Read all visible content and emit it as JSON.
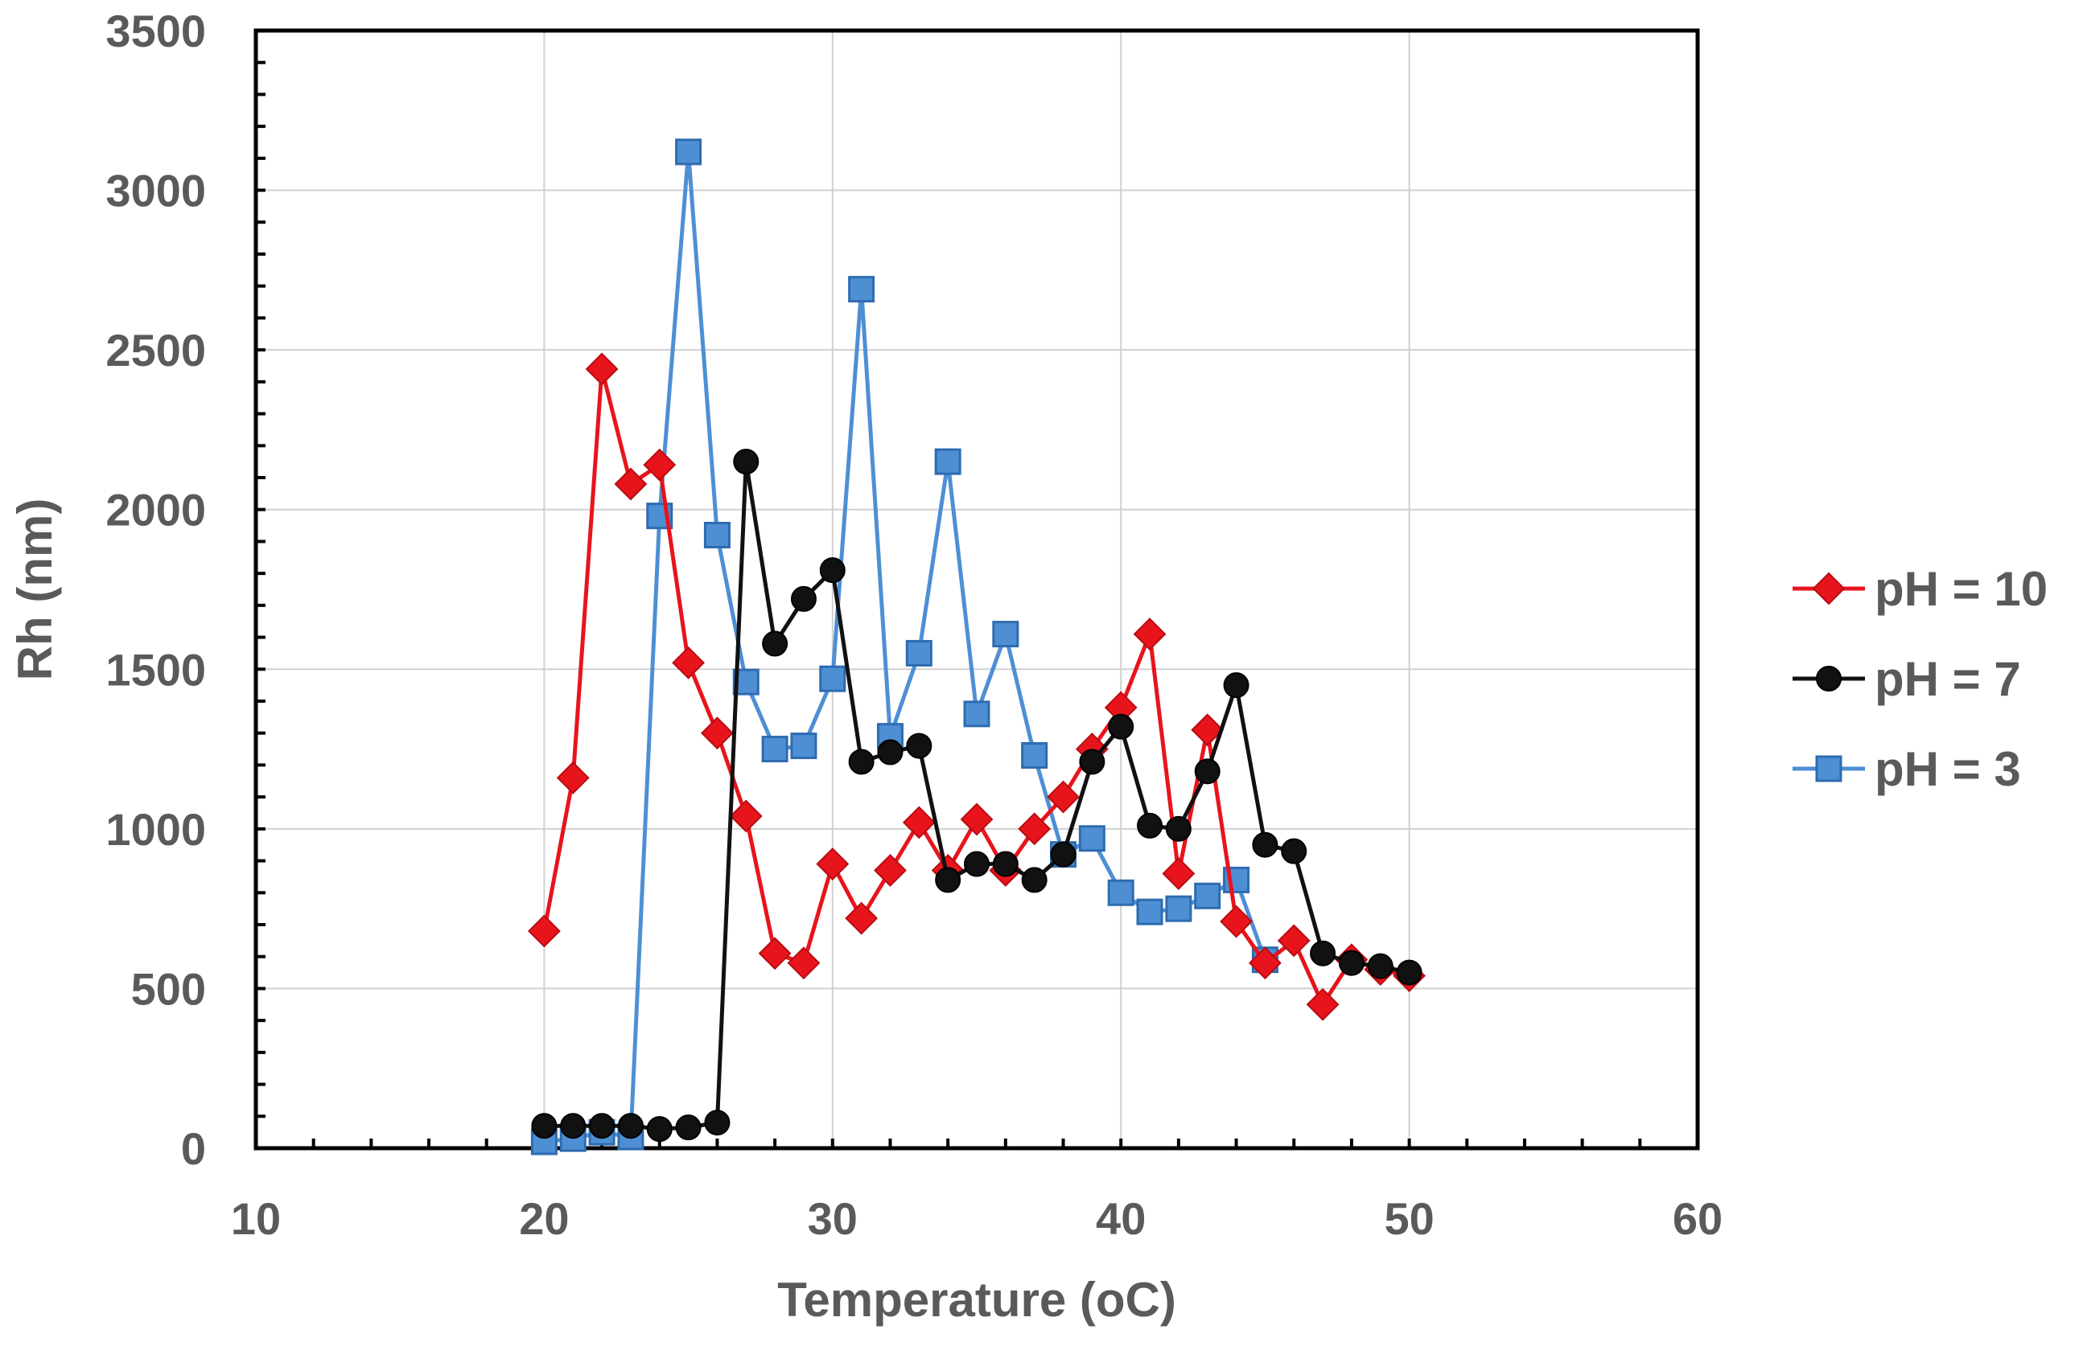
{
  "chart_data": {
    "type": "line",
    "title": "",
    "xlabel": "Temperature (oC)",
    "ylabel": "Rh (nm)",
    "xlim": [
      10,
      60
    ],
    "ylim": [
      0,
      3500
    ],
    "xticks": [
      "10",
      "20",
      "30",
      "40",
      "50",
      "60"
    ],
    "yticks": [
      "0",
      "500",
      "1000",
      "1500",
      "2000",
      "2500",
      "3000",
      "3500"
    ],
    "grid": true,
    "legend_position": "right",
    "series": [
      {
        "name": "pH = 10",
        "color": "#e8141c",
        "marker": "diamond",
        "x": [
          20,
          21,
          22,
          23,
          24,
          25,
          26,
          27,
          28,
          29,
          30,
          31,
          32,
          33,
          34,
          35,
          36,
          37,
          38,
          39,
          40,
          41,
          42,
          43,
          44,
          45,
          46,
          47,
          48,
          49,
          50
        ],
        "y": [
          680,
          1160,
          2440,
          2080,
          2140,
          1520,
          1300,
          1040,
          610,
          580,
          890,
          720,
          870,
          1020,
          870,
          1030,
          870,
          1000,
          1100,
          1250,
          1380,
          1610,
          860,
          1310,
          710,
          580,
          650,
          450,
          590,
          560,
          540
        ]
      },
      {
        "name": "pH = 7",
        "color": "#111111",
        "marker": "circle",
        "x": [
          20,
          21,
          22,
          23,
          24,
          25,
          26,
          27,
          28,
          29,
          30,
          31,
          32,
          33,
          34,
          35,
          36,
          37,
          38,
          39,
          40,
          41,
          42,
          43,
          44,
          45,
          46,
          47,
          48,
          49,
          50
        ],
        "y": [
          70,
          70,
          70,
          70,
          60,
          65,
          80,
          2150,
          1580,
          1720,
          1810,
          1210,
          1240,
          1260,
          840,
          890,
          890,
          840,
          920,
          1210,
          1320,
          1010,
          1000,
          1180,
          1450,
          950,
          930,
          610,
          580,
          570,
          550
        ]
      },
      {
        "name": "pH = 3",
        "color": "#4e8fd4",
        "marker": "square",
        "x": [
          20,
          21,
          22,
          23,
          24,
          25,
          26,
          27,
          28,
          29,
          30,
          31,
          32,
          33,
          34,
          35,
          36,
          37,
          38,
          39,
          40,
          41,
          42,
          43,
          44,
          45
        ],
        "y": [
          20,
          30,
          50,
          35,
          1980,
          3120,
          1920,
          1460,
          1250,
          1260,
          1470,
          2690,
          1290,
          1550,
          2150,
          1360,
          1610,
          1230,
          920,
          970,
          800,
          740,
          750,
          790,
          840,
          590
        ]
      }
    ]
  }
}
